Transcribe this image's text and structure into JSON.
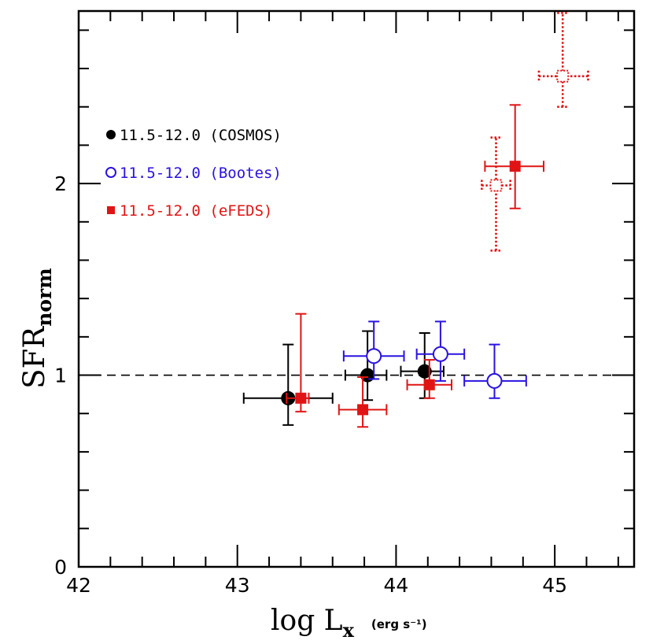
{
  "chart_data": {
    "type": "scatter",
    "title": "",
    "xlabel": {
      "main": "log L",
      "sub": "x",
      "unit": "(erg s⁻¹)"
    },
    "ylabel": {
      "main": "SFR",
      "sub": "norm"
    },
    "xlim": [
      42,
      45.5
    ],
    "ylim": [
      0,
      2.9
    ],
    "x_ticks": [
      {
        "value": 42,
        "label": "42"
      },
      {
        "value": 43,
        "label": "43"
      },
      {
        "value": 44,
        "label": "44"
      },
      {
        "value": 45,
        "label": "45"
      }
    ],
    "y_ticks": [
      {
        "value": 0,
        "label": "0"
      },
      {
        "value": 1,
        "label": "1"
      },
      {
        "value": 2,
        "label": "2"
      }
    ],
    "reference_line": {
      "y": 1,
      "style": "dashed",
      "color": "#000000"
    },
    "legend_position": "upper-left",
    "series": [
      {
        "name": "11.5-12.0 (COSMOS)",
        "color": "#000000",
        "marker": "filled-circle",
        "points": [
          {
            "x": 43.32,
            "y": 0.88,
            "xerr": [
              0.28,
              0.28
            ],
            "yerr": [
              0.14,
              0.28
            ]
          },
          {
            "x": 43.82,
            "y": 1.0,
            "xerr": [
              0.14,
              0.12
            ],
            "yerr": [
              0.13,
              0.23
            ]
          },
          {
            "x": 44.18,
            "y": 1.02,
            "xerr": [
              0.15,
              0.12
            ],
            "yerr": [
              0.14,
              0.2
            ]
          }
        ]
      },
      {
        "name": "11.5-12.0 (Bootes)",
        "color": "#2a12e0",
        "marker": "open-circle",
        "points": [
          {
            "x": 43.86,
            "y": 1.1,
            "xerr": [
              0.19,
              0.19
            ],
            "yerr": [
              0.12,
              0.18
            ]
          },
          {
            "x": 44.28,
            "y": 1.11,
            "xerr": [
              0.15,
              0.15
            ],
            "yerr": [
              0.14,
              0.17
            ]
          },
          {
            "x": 44.62,
            "y": 0.97,
            "xerr": [
              0.19,
              0.2
            ],
            "yerr": [
              0.09,
              0.19
            ]
          }
        ]
      },
      {
        "name": "11.5-12.0 (eFEDS)",
        "color": "#e01414",
        "marker": "filled-square",
        "points": [
          {
            "x": 43.4,
            "y": 0.88,
            "xerr": [
              0.09,
              0.05
            ],
            "yerr": [
              0.07,
              0.44
            ]
          },
          {
            "x": 43.79,
            "y": 0.82,
            "xerr": [
              0.15,
              0.15
            ],
            "yerr": [
              0.09,
              0.17
            ]
          },
          {
            "x": 44.21,
            "y": 0.95,
            "xerr": [
              0.14,
              0.14
            ],
            "yerr": [
              0.07,
              0.13
            ]
          },
          {
            "x": 44.75,
            "y": 2.09,
            "xerr": [
              0.19,
              0.18
            ],
            "yerr": [
              0.22,
              0.32
            ]
          }
        ]
      },
      {
        "name": "",
        "color": "#e01414",
        "marker": "dotted-open-square",
        "points": [
          {
            "x": 44.63,
            "y": 1.99,
            "xerr": [
              0.09,
              0.09
            ],
            "yerr": [
              0.34,
              0.25
            ]
          },
          {
            "x": 45.05,
            "y": 2.56,
            "xerr": [
              0.15,
              0.16
            ],
            "yerr": [
              0.16,
              0.33
            ]
          }
        ]
      }
    ]
  }
}
